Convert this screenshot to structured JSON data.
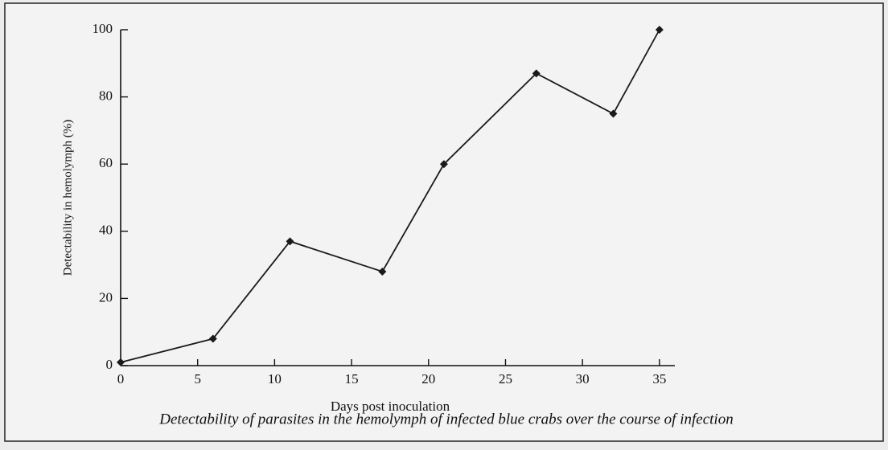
{
  "chart_data": {
    "type": "line",
    "caption": "Detectability of parasites in the hemolymph of infected blue crabs over the course of infection",
    "xlabel": "Days post inoculation",
    "ylabel": "Detectability in hemolymph (%)",
    "x": [
      0,
      6,
      11,
      17,
      21,
      27,
      32,
      35
    ],
    "series": [
      {
        "name": null,
        "color": "#1a1a1a",
        "values": [
          1,
          8,
          37,
          28,
          60,
          87,
          75,
          100
        ]
      }
    ],
    "xlim": [
      0,
      36
    ],
    "xticks": [
      0,
      5,
      10,
      15,
      20,
      25,
      30,
      35
    ],
    "ylim": [
      0,
      100
    ],
    "yticks": [
      0,
      20,
      40,
      60,
      80,
      100
    ],
    "grid": false
  }
}
